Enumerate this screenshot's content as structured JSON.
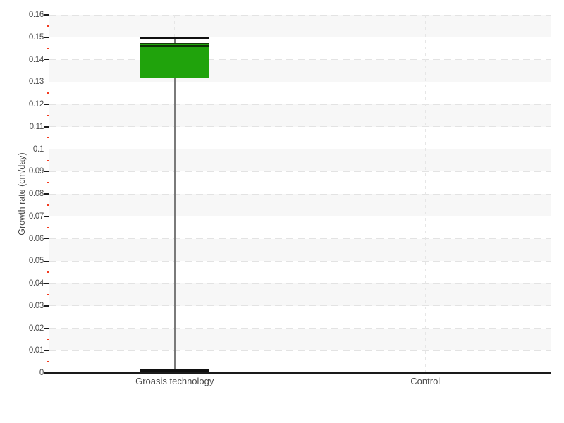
{
  "chart_data": {
    "type": "boxplot",
    "ylabel": "Growth rate (cm/day)",
    "categories": [
      "Groasis technology",
      "Control"
    ],
    "ylim": [
      0,
      0.16
    ],
    "ytick_step": 0.01,
    "ytick_labels": [
      "0",
      "0.01",
      "0.02",
      "0.03",
      "0.04",
      "0.05",
      "0.06",
      "0.07",
      "0.08",
      "0.09",
      "0.1",
      "0.11",
      "0.12",
      "0.13",
      "0.14",
      "0.15",
      "0.16"
    ],
    "minor_tick_step": 0.005,
    "legend": "none",
    "grid": {
      "horizontal": "dashed lines at every 0.01",
      "vertical": "dashed line at each category center",
      "bands": "alternating light-gray horizontal bands every 0.01"
    },
    "series": [
      {
        "name": "Groasis technology",
        "low": 0.001,
        "q1": 0.132,
        "median": 0.146,
        "q3": 0.147,
        "high": 0.1495,
        "box_fill": "#20a30c",
        "box_border": "#163a0a",
        "median_color": "#0d3205",
        "whisker_color": "#7a7a7a",
        "cap_color": "#101010"
      },
      {
        "name": "Control",
        "low": 0,
        "q1": 0,
        "median": 0,
        "q3": 0,
        "high": 0,
        "box_fill": "#101010",
        "box_border": "#101010",
        "median_color": "#101010",
        "whisker_color": "#101010",
        "cap_color": "#101010"
      }
    ],
    "colors": {
      "background": "#ffffff",
      "band": "#f7f7f7",
      "gridline": "#e3e3e3",
      "axis": "#1a1a1a",
      "minor_tick": "#f43a1e",
      "text": "#4a4a4a"
    }
  }
}
